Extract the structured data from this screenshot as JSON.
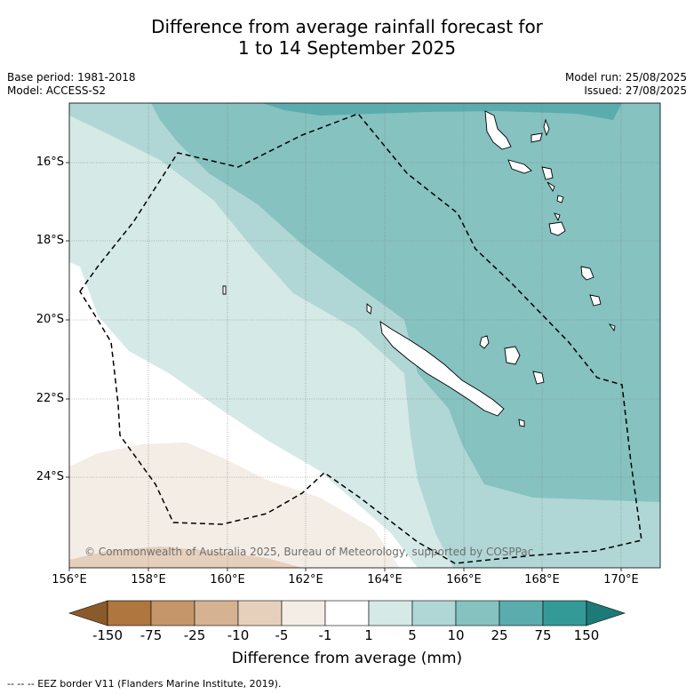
{
  "title_line1": "Difference from average rainfall forecast for",
  "title_line2": "1 to 14 September 2025",
  "meta": {
    "base_period": "Base period: 1981-2018",
    "model": "Model: ACCESS-S2",
    "model_run": "Model run: 25/08/2025",
    "issued": "Issued: 27/08/2025"
  },
  "map": {
    "lat_labels": [
      "16°S",
      "18°S",
      "20°S",
      "22°S",
      "24°S"
    ],
    "lon_labels": [
      "156°E",
      "158°E",
      "160°E",
      "162°E",
      "164°E",
      "166°E",
      "168°E",
      "170°E"
    ],
    "copyright": "© Commonwealth of Australia 2025, Bureau of Meteorology, supported by COSPPac",
    "land_fill": "#ffffff",
    "coast_color": "#000000"
  },
  "colorbar": {
    "labels": [
      "-150",
      "-75",
      "-25",
      "-10",
      "-5",
      "-1",
      "1",
      "5",
      "10",
      "25",
      "75",
      "150"
    ],
    "colors": [
      "#8b5a2b",
      "#b0763f",
      "#c5966a",
      "#d5b392",
      "#e6d0bc",
      "#f3ede6",
      "#ffffff",
      "#d5e9e7",
      "#b0d7d5",
      "#85c2c0",
      "#5aadac",
      "#349a97",
      "#1c7a78"
    ],
    "title": "Difference from average (mm)"
  },
  "eez_note": "--  --  -- EEZ border V11 (Flanders Marine Institute, 2019)."
}
